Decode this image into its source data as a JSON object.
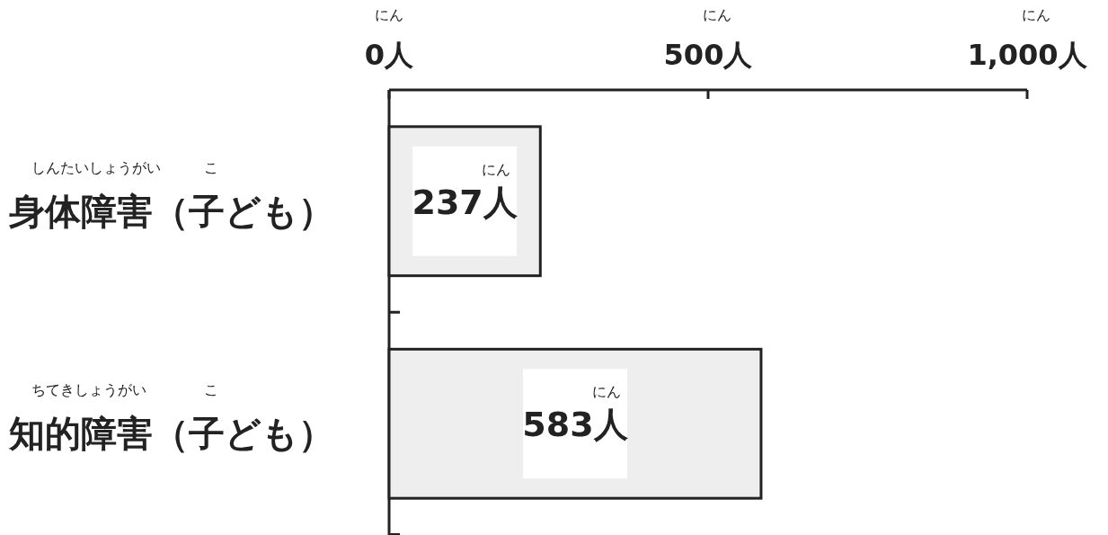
{
  "chart_data": {
    "type": "bar",
    "orientation": "horizontal",
    "categories": [
      "身体障害（子ども）",
      "知的障害（子ども）"
    ],
    "values": [
      237,
      583
    ],
    "color": "#eeeeee",
    "value_labels": [
      "237人",
      "583人"
    ],
    "xlim": [
      0,
      1000
    ],
    "xticks": [
      {
        "value": 0,
        "label": "0人"
      },
      {
        "value": 500,
        "label": "500人"
      },
      {
        "value": 1000,
        "label": "1,000人"
      }
    ],
    "annotations": [
      "にん",
      "にん",
      "にん",
      "にん",
      "にん",
      "しんたいしょうがい　　　こ",
      "ちてきしょうがい　　　　こ"
    ],
    "grid": false
  }
}
